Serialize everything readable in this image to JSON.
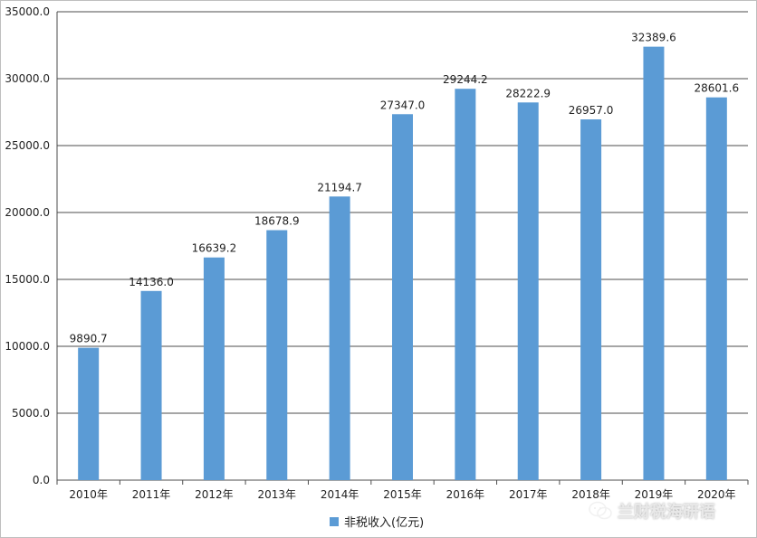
{
  "chart_data": {
    "type": "bar",
    "title": "",
    "xlabel": "",
    "ylabel": "",
    "categories": [
      "2010年",
      "2011年",
      "2012年",
      "2013年",
      "2014年",
      "2015年",
      "2016年",
      "2017年",
      "2018年",
      "2019年",
      "2020年"
    ],
    "series": [
      {
        "name": "非税收入(亿元)",
        "values": [
          9890.7,
          14136.0,
          16639.2,
          18678.9,
          21194.7,
          27347.0,
          29244.2,
          28222.9,
          26957.0,
          32389.6,
          28601.6
        ],
        "labels": [
          "9890.7",
          "14136.0",
          "16639.2",
          "18678.9",
          "21194.7",
          "27347.0",
          "29244.2",
          "28222.9",
          "26957.0",
          "32389.6",
          "28601.6"
        ]
      }
    ],
    "ylim": [
      0,
      35000
    ],
    "yticks": [
      0,
      5000,
      10000,
      15000,
      20000,
      25000,
      30000,
      35000
    ],
    "ytick_labels": [
      "0.0",
      "5000.0",
      "10000.0",
      "15000.0",
      "20000.0",
      "25000.0",
      "30000.0",
      "35000.0"
    ],
    "grid": "horizontal",
    "legend_position": "bottom",
    "bar_color": "#5b9bd5"
  },
  "watermark": {
    "text": "兰财税海研语",
    "icon": "wechat-icon"
  }
}
